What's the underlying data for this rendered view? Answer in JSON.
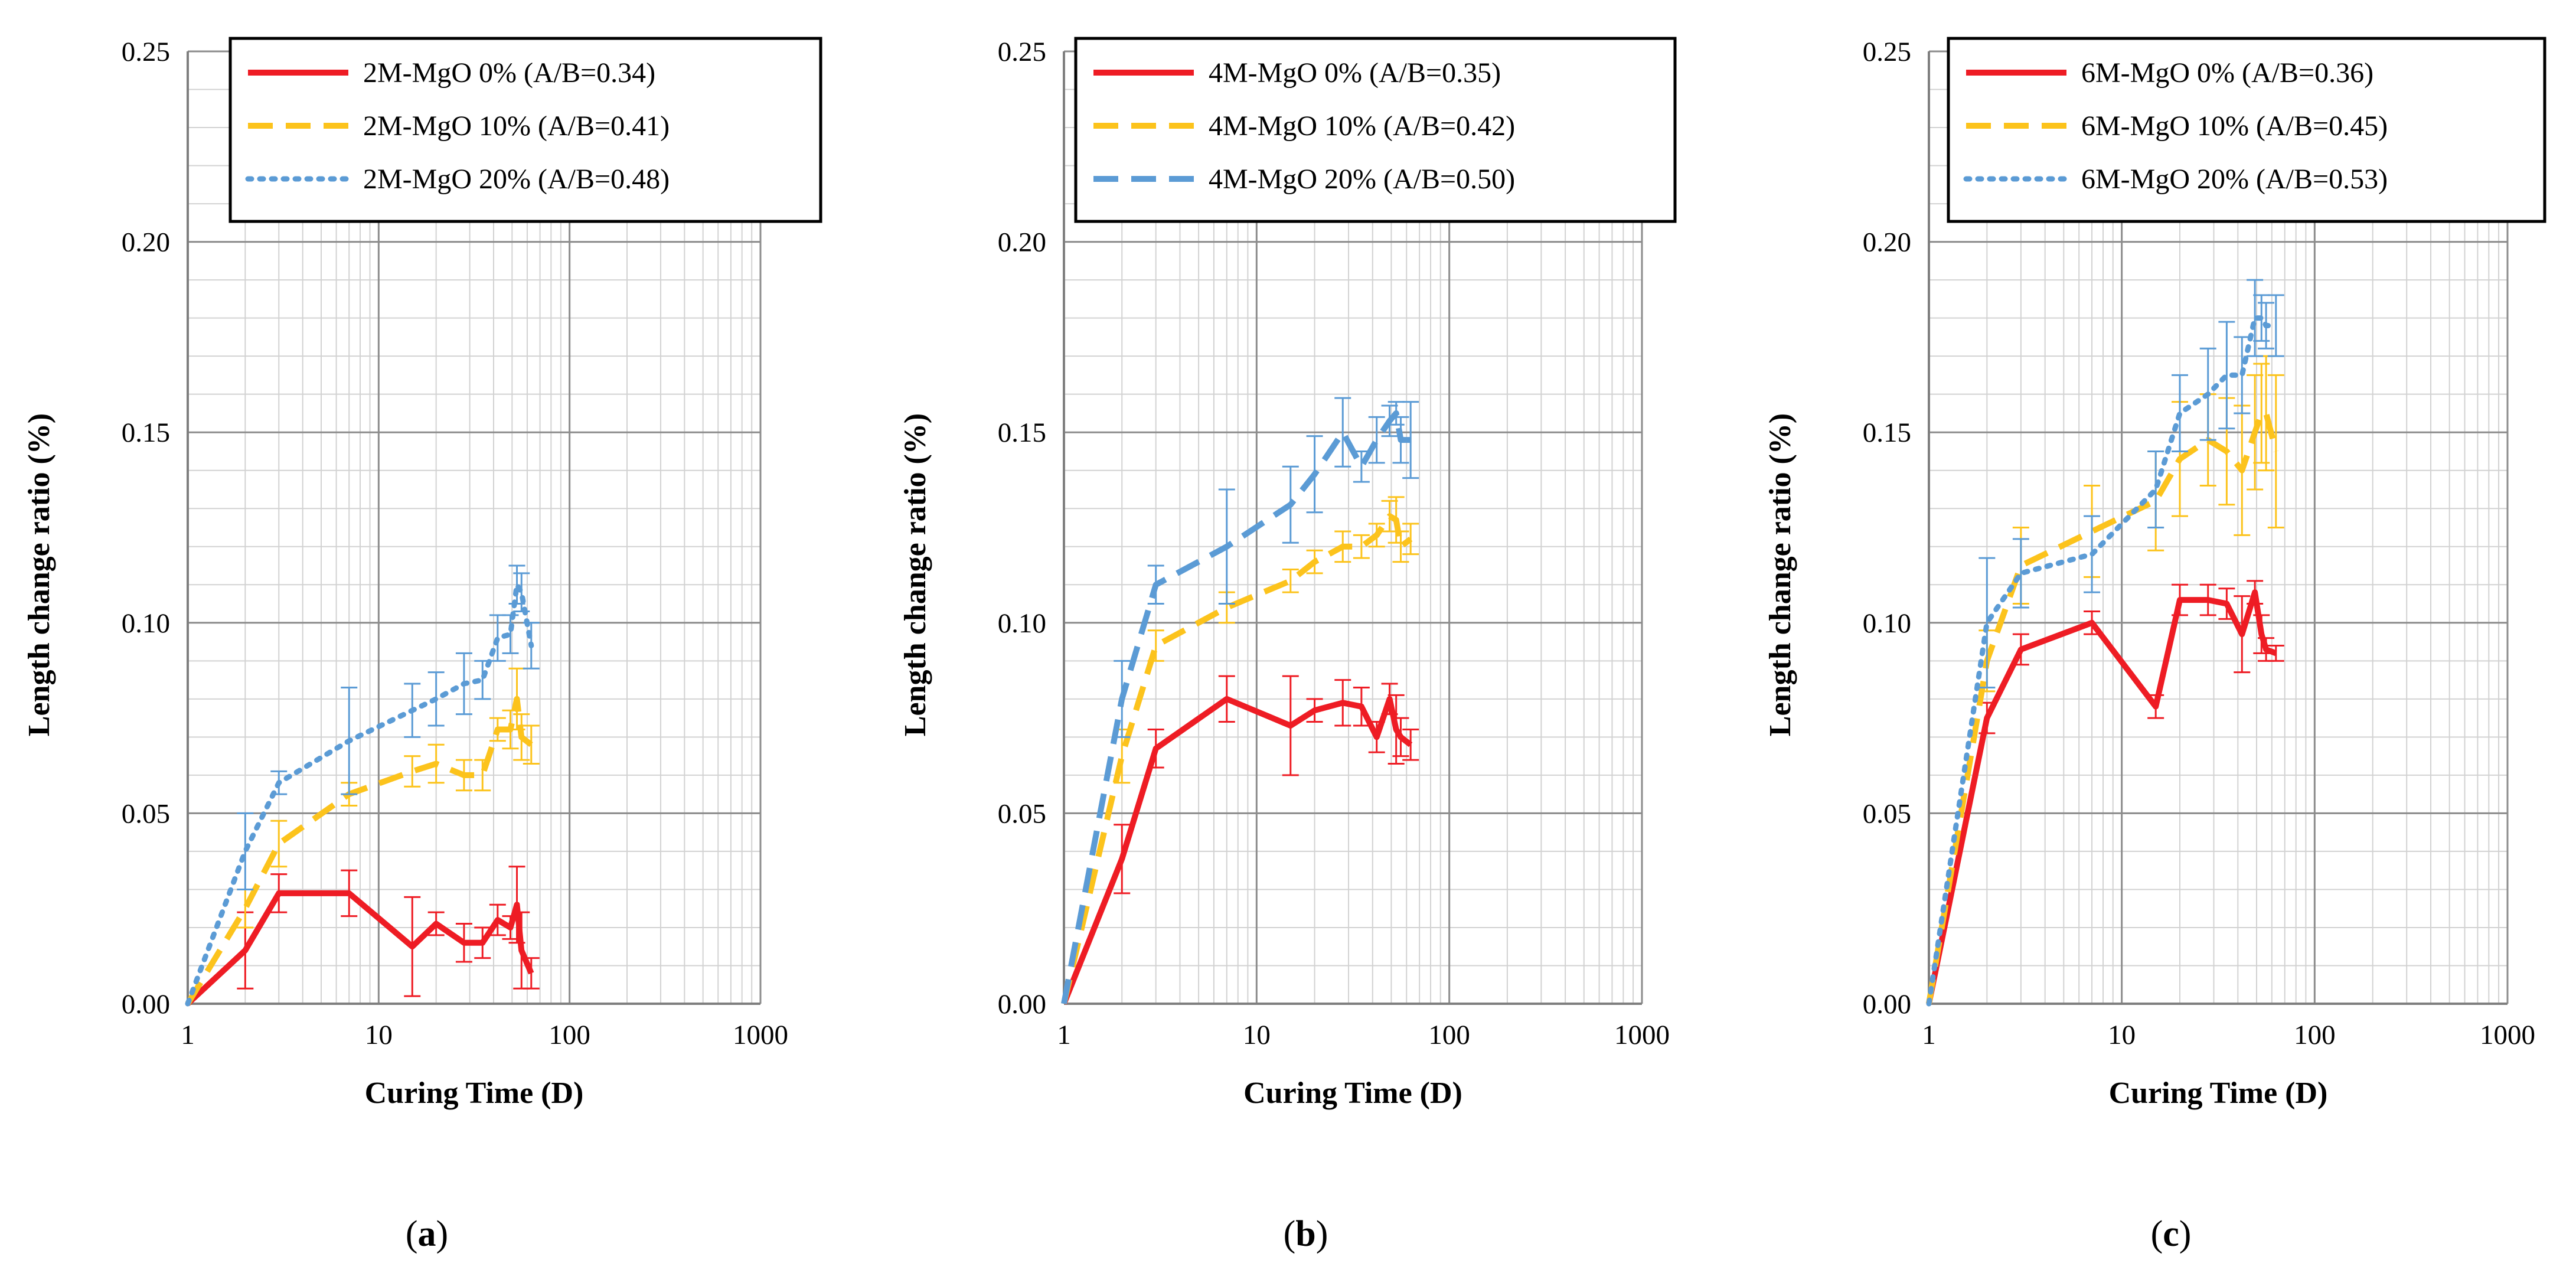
{
  "chart_data": [
    {
      "type": "line",
      "panel_label": "a",
      "xlabel": "Curing Time (D)",
      "ylabel": "Length change ratio (%)",
      "xscale": "log",
      "xlim": [
        1,
        1000
      ],
      "ylim": [
        0,
        0.25
      ],
      "x_ticks": [
        1,
        10,
        100,
        1000
      ],
      "x_tick_labels": [
        "1",
        "10",
        "100",
        "1000"
      ],
      "y_ticks": [
        0,
        0.05,
        0.1,
        0.15,
        0.2,
        0.25
      ],
      "y_tick_labels": [
        "0.00",
        "0.05",
        "0.10",
        "0.15",
        "0.20",
        "0.25"
      ],
      "grid": true,
      "legend": "top-right",
      "series": [
        {
          "name": "2M-MgO 0% (A/B=0.34)",
          "color": "#ee1c24",
          "style": "solid",
          "x": [
            1,
            2,
            3,
            7,
            15,
            20,
            28,
            35,
            42,
            49,
            53,
            56,
            63
          ],
          "y": [
            0,
            0.014,
            0.029,
            0.029,
            0.015,
            0.021,
            0.016,
            0.016,
            0.022,
            0.02,
            0.026,
            0.014,
            0.008
          ],
          "err": [
            0,
            0.01,
            0.005,
            0.006,
            0.013,
            0.003,
            0.005,
            0.004,
            0.004,
            0.003,
            0.01,
            0.01,
            0.004
          ]
        },
        {
          "name": "2M-MgO 10% (A/B=0.41)",
          "color": "#fcc31c",
          "style": "dashed",
          "x": [
            1,
            2,
            3,
            7,
            15,
            20,
            28,
            35,
            42,
            49,
            53,
            56,
            63
          ],
          "y": [
            0,
            0.025,
            0.042,
            0.055,
            0.061,
            0.063,
            0.06,
            0.06,
            0.072,
            0.072,
            0.08,
            0.07,
            0.068
          ],
          "err": [
            0,
            0.005,
            0.006,
            0.003,
            0.004,
            0.005,
            0.004,
            0.004,
            0.003,
            0.005,
            0.008,
            0.006,
            0.005
          ]
        },
        {
          "name": "2M-MgO 20% (A/B=0.48)",
          "color": "#5b9bd5",
          "style": "dotted",
          "x": [
            1,
            2,
            3,
            7,
            15,
            20,
            28,
            35,
            42,
            49,
            53,
            56,
            63
          ],
          "y": [
            0,
            0.04,
            0.058,
            0.069,
            0.077,
            0.08,
            0.084,
            0.085,
            0.096,
            0.097,
            0.11,
            0.108,
            0.094
          ],
          "err": [
            0,
            0.01,
            0.003,
            0.014,
            0.007,
            0.007,
            0.008,
            0.005,
            0.006,
            0.005,
            0.005,
            0.005,
            0.006
          ]
        }
      ]
    },
    {
      "type": "line",
      "panel_label": "b",
      "xlabel": "Curing Time (D)",
      "ylabel": "Length change ratio (%)",
      "xscale": "log",
      "xlim": [
        1,
        1000
      ],
      "ylim": [
        0,
        0.25
      ],
      "x_ticks": [
        1,
        10,
        100,
        1000
      ],
      "x_tick_labels": [
        "1",
        "10",
        "100",
        "1000"
      ],
      "y_ticks": [
        0,
        0.05,
        0.1,
        0.15,
        0.2,
        0.25
      ],
      "y_tick_labels": [
        "0.00",
        "0.05",
        "0.10",
        "0.15",
        "0.20",
        "0.25"
      ],
      "grid": true,
      "legend": "top-right",
      "series": [
        {
          "name": "4M-MgO 0% (A/B=0.35)",
          "color": "#ee1c24",
          "style": "solid",
          "x": [
            1,
            2,
            3,
            7,
            15,
            20,
            28,
            35,
            42,
            49,
            53,
            56,
            63
          ],
          "y": [
            0,
            0.038,
            0.067,
            0.08,
            0.073,
            0.077,
            0.079,
            0.078,
            0.07,
            0.08,
            0.072,
            0.07,
            0.068
          ],
          "err": [
            0,
            0.009,
            0.005,
            0.006,
            0.013,
            0.003,
            0.006,
            0.005,
            0.004,
            0.004,
            0.009,
            0.005,
            0.004
          ]
        },
        {
          "name": "4M-MgO 10% (A/B=0.42)",
          "color": "#fcc31c",
          "style": "dashed",
          "x": [
            1,
            2,
            3,
            7,
            15,
            20,
            28,
            35,
            42,
            49,
            53,
            56,
            63
          ],
          "y": [
            0,
            0.065,
            0.094,
            0.104,
            0.111,
            0.116,
            0.12,
            0.12,
            0.123,
            0.128,
            0.127,
            0.12,
            0.122
          ],
          "err": [
            0,
            0.007,
            0.004,
            0.004,
            0.003,
            0.003,
            0.004,
            0.003,
            0.003,
            0.004,
            0.006,
            0.004,
            0.004
          ]
        },
        {
          "name": "4M-MgO 20% (A/B=0.50)",
          "color": "#5b9bd5",
          "style": "dashed",
          "x": [
            1,
            2,
            3,
            7,
            15,
            20,
            28,
            35,
            42,
            49,
            53,
            56,
            63
          ],
          "y": [
            0,
            0.08,
            0.11,
            0.12,
            0.131,
            0.139,
            0.15,
            0.141,
            0.148,
            0.153,
            0.155,
            0.148,
            0.148
          ],
          "err": [
            0,
            0.01,
            0.005,
            0.015,
            0.01,
            0.01,
            0.009,
            0.004,
            0.006,
            0.004,
            0.003,
            0.006,
            0.01
          ]
        }
      ]
    },
    {
      "type": "line",
      "panel_label": "c",
      "xlabel": "Curing Time (D)",
      "ylabel": "Length change ratio (%)",
      "xscale": "log",
      "xlim": [
        1,
        1000
      ],
      "ylim": [
        0,
        0.25
      ],
      "x_ticks": [
        1,
        10,
        100,
        1000
      ],
      "x_tick_labels": [
        "1",
        "10",
        "100",
        "1000"
      ],
      "y_ticks": [
        0,
        0.05,
        0.1,
        0.15,
        0.2,
        0.25
      ],
      "y_tick_labels": [
        "0.00",
        "0.05",
        "0.10",
        "0.15",
        "0.20",
        "0.25"
      ],
      "grid": true,
      "legend": "top-right",
      "series": [
        {
          "name": "6M-MgO 0% (A/B=0.36)",
          "color": "#ee1c24",
          "style": "solid",
          "x": [
            1,
            2,
            3,
            7,
            15,
            20,
            28,
            35,
            42,
            49,
            53,
            56,
            63
          ],
          "y": [
            0,
            0.075,
            0.093,
            0.1,
            0.078,
            0.106,
            0.106,
            0.105,
            0.097,
            0.108,
            0.097,
            0.093,
            0.092
          ],
          "err": [
            0,
            0.004,
            0.004,
            0.003,
            0.003,
            0.004,
            0.004,
            0.004,
            0.01,
            0.003,
            0.005,
            0.003,
            0.002
          ]
        },
        {
          "name": "6M-MgO 10% (A/B=0.45)",
          "color": "#fcc31c",
          "style": "dashed",
          "x": [
            1,
            2,
            3,
            7,
            15,
            20,
            28,
            35,
            42,
            49,
            53,
            56,
            63
          ],
          "y": [
            0,
            0.09,
            0.115,
            0.124,
            0.132,
            0.143,
            0.148,
            0.145,
            0.14,
            0.15,
            0.155,
            0.155,
            0.145
          ],
          "err": [
            0,
            0.008,
            0.01,
            0.012,
            0.013,
            0.015,
            0.012,
            0.014,
            0.017,
            0.015,
            0.013,
            0.015,
            0.02
          ]
        },
        {
          "name": "6M-MgO 20% (A/B=0.53)",
          "color": "#5b9bd5",
          "style": "dotted",
          "x": [
            1,
            2,
            3,
            7,
            15,
            20,
            28,
            35,
            42,
            49,
            53,
            56,
            63
          ],
          "y": [
            0,
            0.1,
            0.113,
            0.118,
            0.135,
            0.155,
            0.16,
            0.165,
            0.165,
            0.18,
            0.18,
            0.178,
            0.178
          ],
          "err": [
            0,
            0.017,
            0.009,
            0.01,
            0.01,
            0.01,
            0.012,
            0.014,
            0.01,
            0.01,
            0.006,
            0.006,
            0.008
          ]
        }
      ]
    }
  ]
}
